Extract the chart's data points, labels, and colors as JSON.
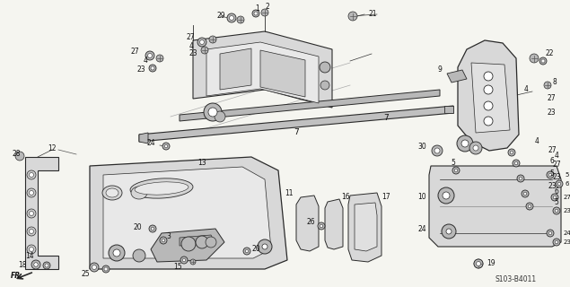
{
  "bg_color": "#f5f5f0",
  "diagram_code": "S103-B4011",
  "line_color": "#2a2a2a",
  "fill_light": "#d8d8d8",
  "fill_mid": "#b8b8b8",
  "fill_dark": "#888888"
}
